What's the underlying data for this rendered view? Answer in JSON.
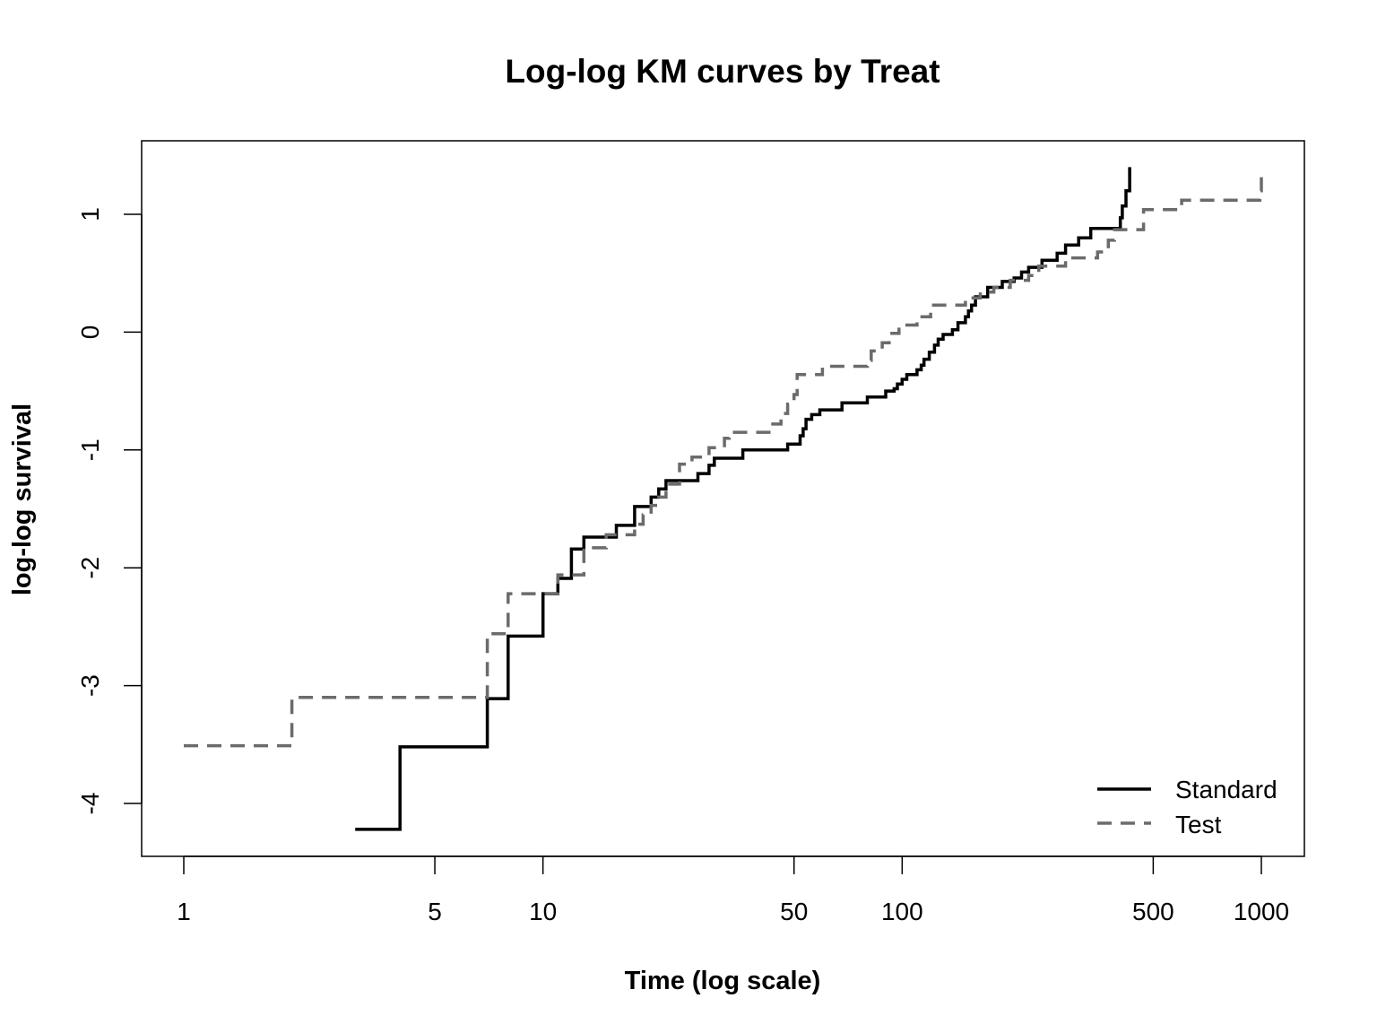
{
  "chart_data": {
    "type": "line",
    "step": true,
    "title": "Log-log KM curves by Treat",
    "xlabel": "Time (log scale)",
    "ylabel": "log-log survival",
    "x_scale": "log",
    "xlim": [
      1,
      1000
    ],
    "ylim": [
      -4.5,
      1.6
    ],
    "x_ticks": [
      1,
      5,
      10,
      50,
      100,
      500,
      1000
    ],
    "x_tick_labels": [
      "1",
      "5",
      "10",
      "50",
      "100",
      "500",
      "1000"
    ],
    "y_ticks": [
      -4,
      -3,
      -2,
      -1,
      0,
      1
    ],
    "y_tick_labels": [
      "-4",
      "-3",
      "-2",
      "-1",
      "0",
      "1"
    ],
    "grid": false,
    "legend_position": "bottom-right",
    "series": [
      {
        "name": "Standard",
        "color": "#000000",
        "dash": "solid",
        "x": [
          3,
          4,
          7,
          8,
          10,
          11,
          12,
          13,
          16,
          18,
          20,
          21,
          22,
          27,
          29,
          30,
          36,
          48,
          52,
          53,
          54,
          56,
          59,
          68,
          80,
          90,
          95,
          97,
          100,
          103,
          110,
          113,
          115,
          119,
          123,
          126,
          130,
          138,
          143,
          150,
          153,
          156,
          160,
          173,
          190,
          205,
          215,
          225,
          245,
          270,
          285,
          310,
          335,
          405,
          410,
          420,
          430
        ],
        "y": [
          -4.22,
          -3.52,
          -3.11,
          -2.58,
          -2.22,
          -2.09,
          -1.84,
          -1.74,
          -1.64,
          -1.48,
          -1.4,
          -1.33,
          -1.26,
          -1.2,
          -1.13,
          -1.07,
          -1.0,
          -0.95,
          -0.88,
          -0.82,
          -0.74,
          -0.7,
          -0.66,
          -0.6,
          -0.55,
          -0.5,
          -0.48,
          -0.44,
          -0.4,
          -0.36,
          -0.32,
          -0.28,
          -0.23,
          -0.17,
          -0.11,
          -0.06,
          -0.02,
          0.02,
          0.08,
          0.13,
          0.18,
          0.23,
          0.3,
          0.38,
          0.43,
          0.46,
          0.51,
          0.55,
          0.61,
          0.67,
          0.74,
          0.8,
          0.88,
          0.97,
          1.07,
          1.2,
          1.4
        ]
      },
      {
        "name": "Test",
        "color": "#6b6b6b",
        "dash": "dashed",
        "x": [
          1,
          2,
          7,
          8,
          11,
          13,
          15,
          18,
          19,
          20,
          21,
          22,
          24,
          26,
          29,
          32,
          33,
          43,
          46,
          48,
          50,
          51,
          60,
          80,
          82,
          88,
          92,
          98,
          110,
          120,
          150,
          165,
          180,
          200,
          225,
          240,
          285,
          350,
          375,
          390,
          470,
          600,
          990,
          1000
        ],
        "y": [
          -3.51,
          -3.1,
          -2.56,
          -2.22,
          -2.06,
          -1.83,
          -1.72,
          -1.63,
          -1.55,
          -1.47,
          -1.4,
          -1.29,
          -1.12,
          -1.06,
          -0.98,
          -0.9,
          -0.85,
          -0.78,
          -0.69,
          -0.61,
          -0.53,
          -0.36,
          -0.29,
          -0.24,
          -0.16,
          -0.09,
          -0.01,
          0.06,
          0.13,
          0.23,
          0.29,
          0.34,
          0.38,
          0.44,
          0.48,
          0.56,
          0.63,
          0.68,
          0.78,
          0.87,
          1.04,
          1.12,
          1.2,
          1.36
        ]
      }
    ]
  }
}
